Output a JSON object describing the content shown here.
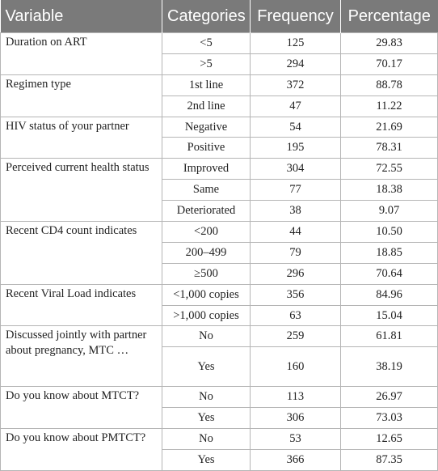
{
  "table": {
    "headers": [
      "Variable",
      "Categories",
      "Frequency",
      "Percentage"
    ],
    "groups": [
      {
        "variable": "Duration on ART",
        "rows": [
          {
            "category": "<5",
            "frequency": "125",
            "percentage": "29.83"
          },
          {
            "category": ">5",
            "frequency": "294",
            "percentage": "70.17"
          }
        ]
      },
      {
        "variable": "Regimen type",
        "rows": [
          {
            "category": "1st line",
            "frequency": "372",
            "percentage": "88.78"
          },
          {
            "category": "2nd line",
            "frequency": "47",
            "percentage": "11.22"
          }
        ]
      },
      {
        "variable": "HIV status of your partner",
        "rows": [
          {
            "category": "Negative",
            "frequency": "54",
            "percentage": "21.69"
          },
          {
            "category": "Positive",
            "frequency": "195",
            "percentage": "78.31"
          }
        ]
      },
      {
        "variable": "Perceived current health status",
        "rows": [
          {
            "category": "Improved",
            "frequency": "304",
            "percentage": "72.55"
          },
          {
            "category": "Same",
            "frequency": "77",
            "percentage": "18.38"
          },
          {
            "category": "Deteriorated",
            "frequency": "38",
            "percentage": "9.07"
          }
        ]
      },
      {
        "variable": "Recent CD4 count indicates",
        "rows": [
          {
            "category": "<200",
            "frequency": "44",
            "percentage": "10.50"
          },
          {
            "category": "200–499",
            "frequency": "79",
            "percentage": "18.85"
          },
          {
            "category": "≥500",
            "frequency": "296",
            "percentage": "70.64"
          }
        ]
      },
      {
        "variable": "Recent Viral Load indicates",
        "rows": [
          {
            "category": "<1,000 copies",
            "frequency": "356",
            "percentage": "84.96"
          },
          {
            "category": ">1,000 copies",
            "frequency": "63",
            "percentage": "15.04"
          }
        ]
      },
      {
        "variable": "Discussed jointly with partner about pregnancy, MTC …",
        "rows": [
          {
            "category": "No",
            "frequency": "259",
            "percentage": "61.81"
          },
          {
            "category": "Yes",
            "frequency": "160",
            "percentage": "38.19"
          }
        ]
      },
      {
        "variable": "Do you know about MTCT?",
        "rows": [
          {
            "category": "No",
            "frequency": "113",
            "percentage": "26.97"
          },
          {
            "category": "Yes",
            "frequency": "306",
            "percentage": "73.03"
          }
        ]
      },
      {
        "variable": "Do you know about PMTCT?",
        "rows": [
          {
            "category": "No",
            "frequency": "53",
            "percentage": "12.65"
          },
          {
            "category": "Yes",
            "frequency": "366",
            "percentage": "87.35"
          }
        ]
      }
    ]
  }
}
